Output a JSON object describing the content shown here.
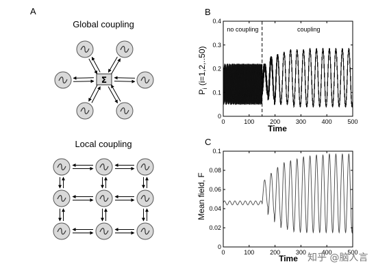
{
  "panels": {
    "a": {
      "letter": "A",
      "global_title": "Global coupling",
      "local_title": "Local coupling",
      "hub_symbol": "Σ",
      "oscillator_symbol": "~"
    }
  },
  "watermark": "知乎 @脑人言",
  "chart_data": [
    {
      "id": "panel-b",
      "letter": "B",
      "type": "line",
      "xlabel": "Time",
      "ylabel": "P",
      "ylabel_sub": "i",
      "ylabel_suffix": " (i=1,2,..50)",
      "xlim": [
        0,
        500
      ],
      "ylim": [
        0,
        0.4
      ],
      "xticks": [
        0,
        100,
        200,
        300,
        400,
        500
      ],
      "yticks": [
        0,
        0.1,
        0.2,
        0.3,
        0.4
      ],
      "ytick_labels": [
        "0",
        "0.1",
        "0.2",
        "0.3",
        "0.4"
      ],
      "grid": false,
      "annotations": [
        {
          "text": "no coupling",
          "x": 75,
          "y": 0.365
        },
        {
          "text": "coupling",
          "x": 330,
          "y": 0.365
        }
      ],
      "divider_x": 150,
      "n_series": 50,
      "phase1": {
        "x_range": [
          0,
          150
        ],
        "min": 0.05,
        "max": 0.22
      },
      "phase2": {
        "x_range": [
          150,
          500
        ],
        "period": 25,
        "peak_times": [
          160,
          185,
          210,
          235,
          260,
          285,
          310,
          335,
          360,
          385,
          410,
          435,
          460,
          485
        ],
        "peaks": [
          0.22,
          0.25,
          0.26,
          0.27,
          0.28,
          0.28,
          0.28,
          0.285,
          0.285,
          0.285,
          0.285,
          0.285,
          0.285,
          0.285
        ],
        "troughs": [
          0.09,
          0.07,
          0.05,
          0.05,
          0.05,
          0.04,
          0.04,
          0.04,
          0.04,
          0.04,
          0.04,
          0.04,
          0.04,
          0.04
        ]
      }
    },
    {
      "id": "panel-c",
      "letter": "C",
      "type": "line",
      "xlabel": "Time",
      "ylabel": "Mean field, F",
      "xlim": [
        0,
        500
      ],
      "ylim": [
        0,
        0.1
      ],
      "xticks": [
        0,
        100,
        200,
        300,
        400,
        500
      ],
      "yticks": [
        0,
        0.02,
        0.04,
        0.06,
        0.08,
        0.1
      ],
      "ytick_labels": [
        "0",
        "0.02",
        "0.04",
        "0.06",
        "0.08",
        "0.1"
      ],
      "grid": false,
      "phase1": {
        "x_range": [
          0,
          150
        ],
        "mean": 0.046,
        "amplitude": 0.002,
        "period": 20
      },
      "phase2": {
        "x_range": [
          150,
          500
        ],
        "period": 25,
        "peak_times": [
          160,
          185,
          210,
          235,
          260,
          285,
          310,
          335,
          360,
          385,
          410,
          435,
          460,
          485
        ],
        "peaks": [
          0.07,
          0.077,
          0.083,
          0.088,
          0.09,
          0.092,
          0.094,
          0.095,
          0.096,
          0.096,
          0.097,
          0.097,
          0.097,
          0.097
        ],
        "troughs": [
          0.042,
          0.034,
          0.026,
          0.02,
          0.018,
          0.016,
          0.015,
          0.015,
          0.015,
          0.015,
          0.015,
          0.015,
          0.015,
          0.015
        ]
      }
    }
  ]
}
